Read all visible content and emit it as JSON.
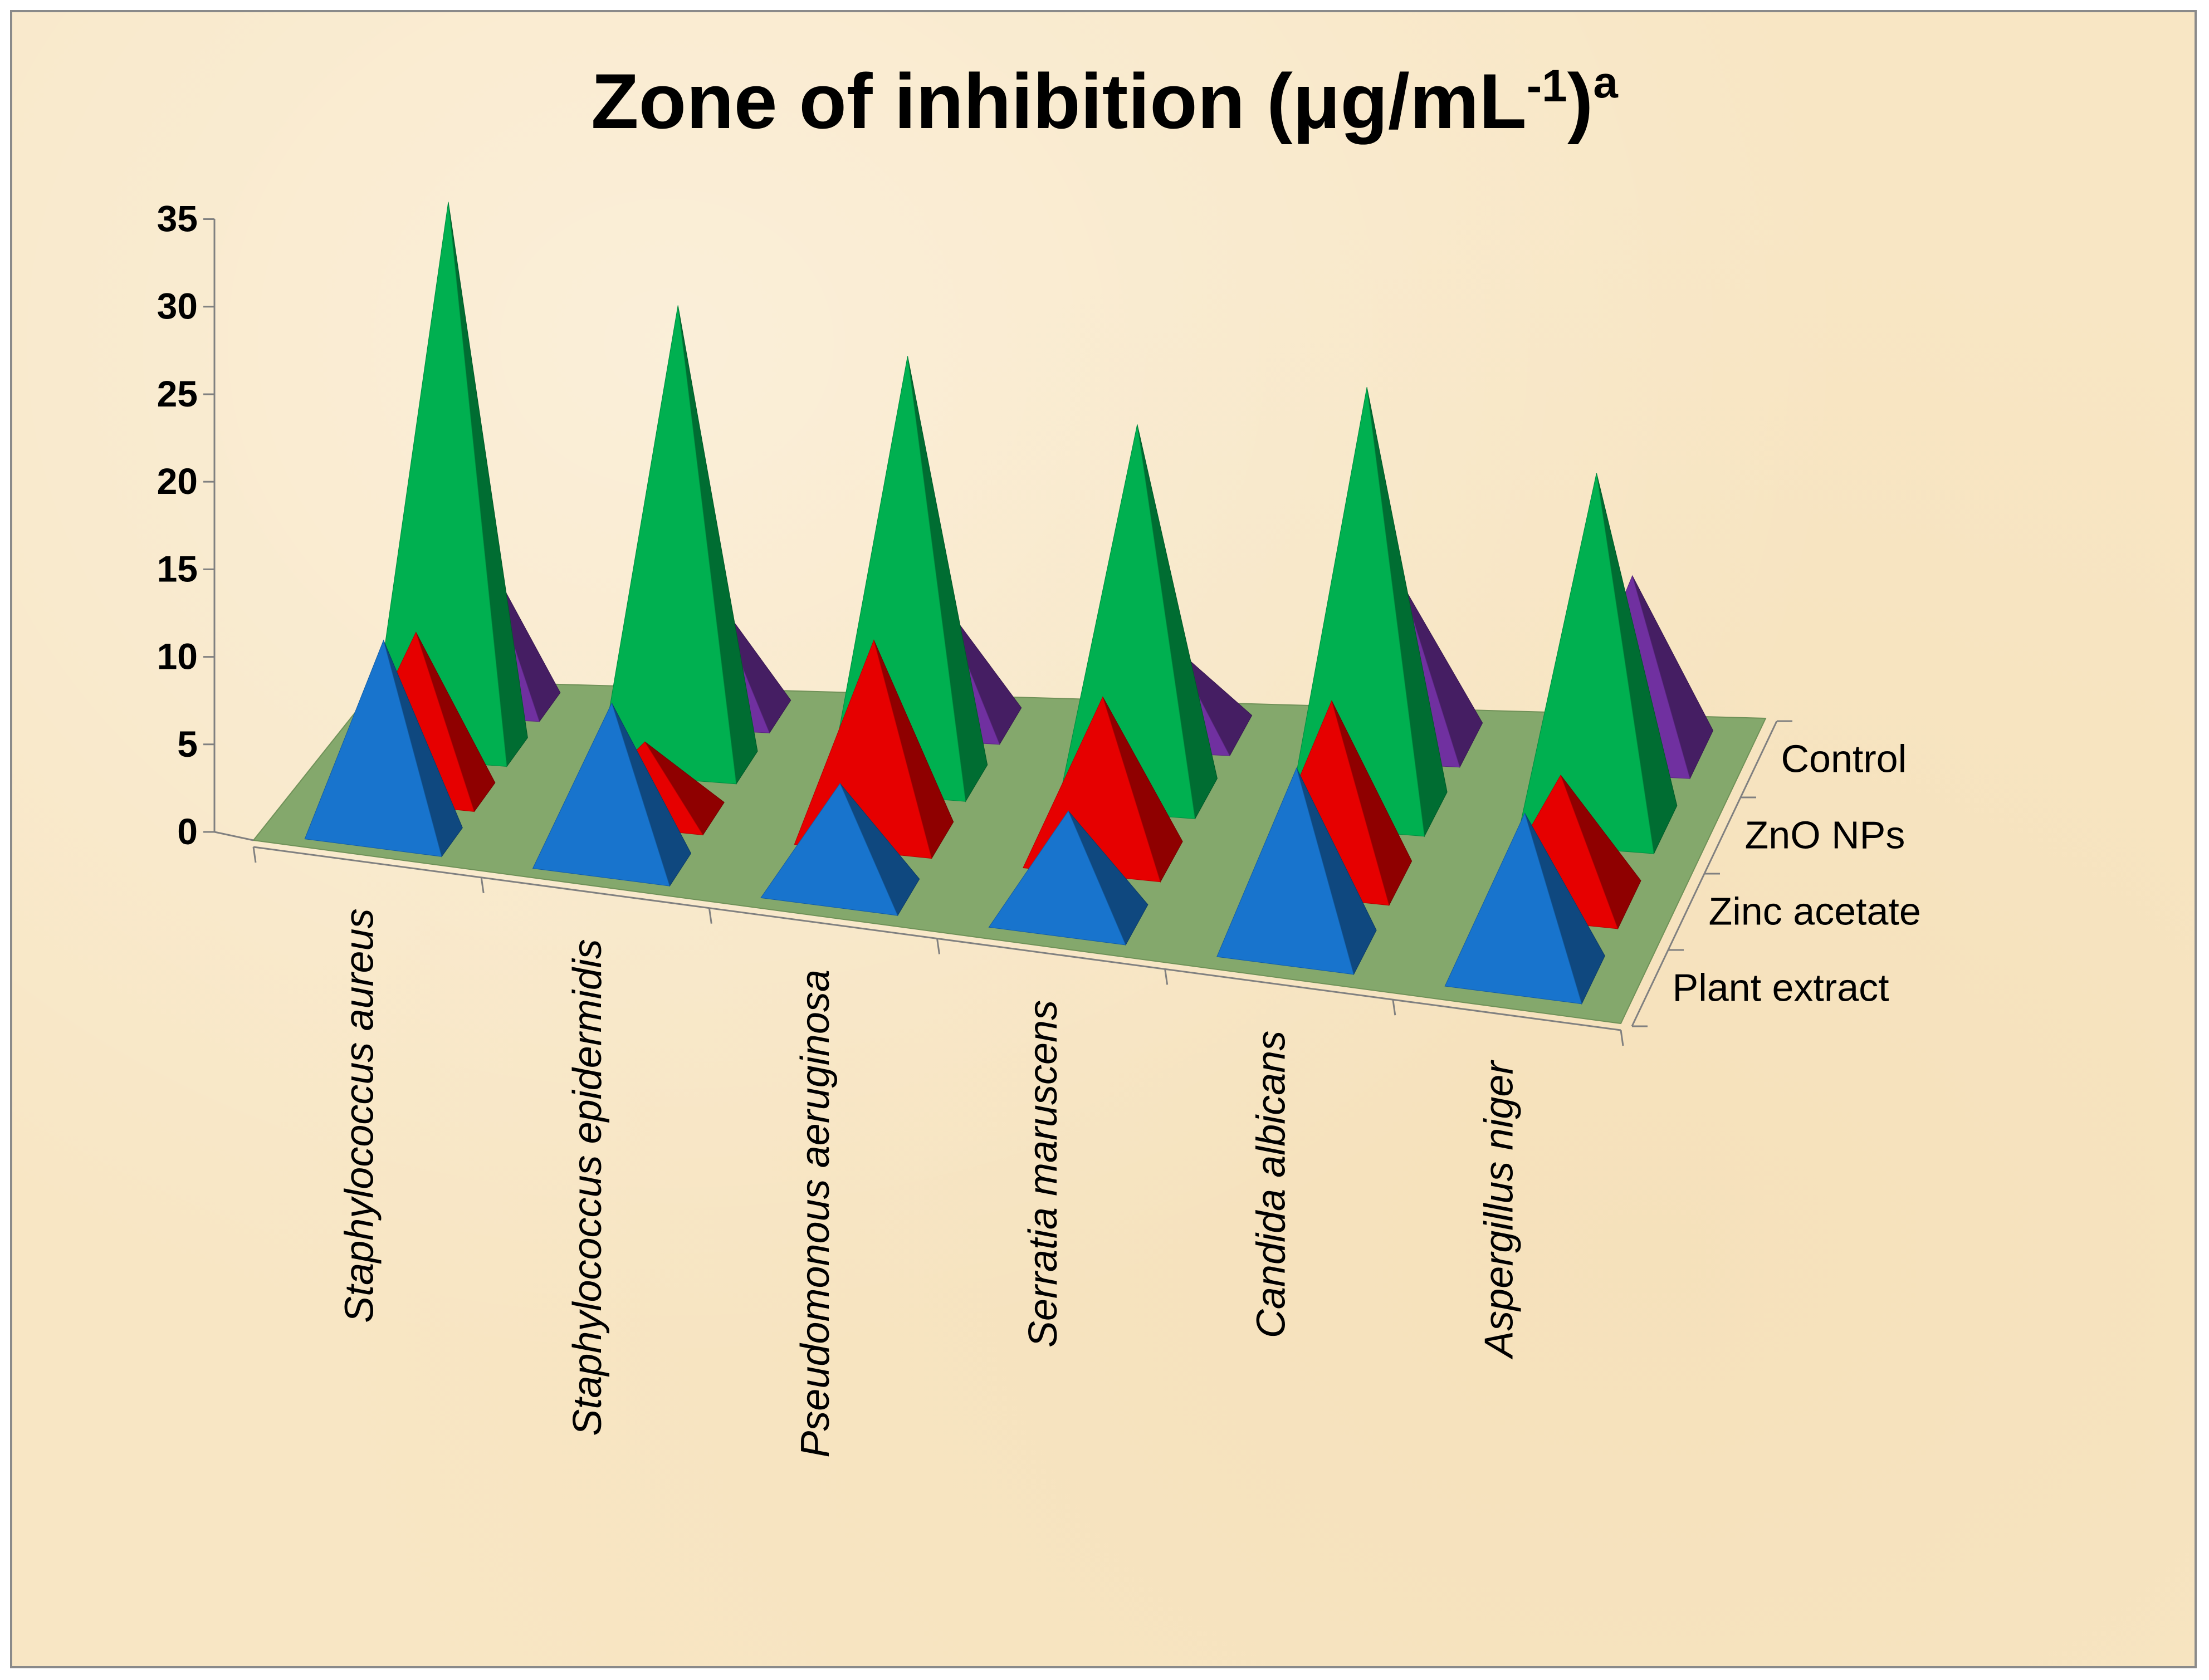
{
  "chart_data": {
    "type": "3d-pyramid",
    "title": "Zone of inhibition (μg/mL",
    "title_superscript": "-1",
    "title_close": ")",
    "title_footnote": "a",
    "categories": [
      "Staphylococcus aureus",
      "Staphylococcus epidermidis",
      "Pseudomonous aeruginosa",
      "Serratia maruscens",
      "Candida albicans",
      "Aspergillus niger"
    ],
    "series": [
      {
        "name": "Plant extract",
        "color": "#1874cd",
        "values": [
          11,
          9,
          6,
          6,
          10,
          9
        ]
      },
      {
        "name": "Zinc acetate",
        "color": "#e60000",
        "values": [
          9,
          4,
          11,
          9,
          10,
          7
        ]
      },
      {
        "name": "ZnO NPs",
        "color": "#00b050",
        "values": [
          31,
          26,
          24,
          21,
          24,
          20
        ]
      },
      {
        "name": "Control",
        "color": "#7030a0",
        "values": [
          9,
          7,
          7,
          5,
          9,
          10
        ]
      }
    ],
    "series_axis_order": [
      "Control",
      "ZnO NPs",
      "Zinc acetate",
      "Plant extract"
    ],
    "yticks": [
      0,
      5,
      10,
      15,
      20,
      25,
      30,
      35
    ],
    "ylim": [
      0,
      35
    ],
    "floor_color": "#84a86c"
  }
}
